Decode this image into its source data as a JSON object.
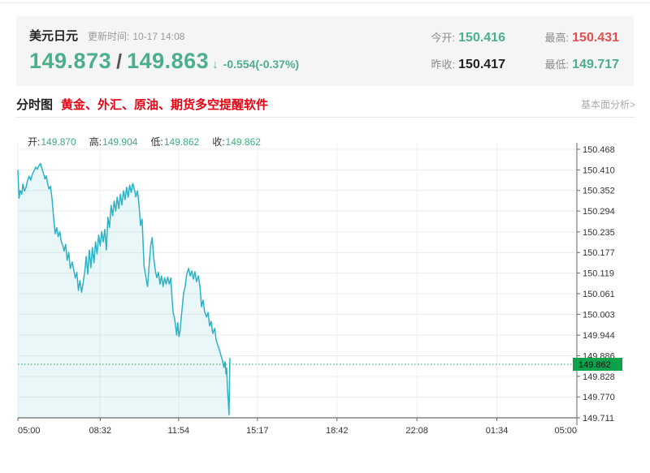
{
  "header": {
    "symbol": "美元日元",
    "update_label": "更新时间:",
    "update_time": "10-17 14:08",
    "bid": "149.873",
    "slash": "/",
    "ask": "149.863",
    "arrow": "↓",
    "change": "-0.554(-0.37%)",
    "stats": [
      {
        "label": "今开:",
        "value": "150.416",
        "color": "green"
      },
      {
        "label": "最高:",
        "value": "150.431",
        "color": "red"
      },
      {
        "label": "昨收:",
        "value": "150.417",
        "color": "dark"
      },
      {
        "label": "最低:",
        "value": "149.717",
        "color": "green"
      }
    ]
  },
  "tabs": {
    "active": "分时图",
    "ad_text": "黄金、外汇、原油、期货多空提醒软件",
    "right_link": "基本面分析>"
  },
  "ohlc": [
    {
      "label": "开:",
      "value": "149.870"
    },
    {
      "label": "高:",
      "value": "149.904"
    },
    {
      "label": "低:",
      "value": "149.862"
    },
    {
      "label": "收:",
      "value": "149.862"
    }
  ],
  "chart_data": {
    "type": "area",
    "title": "美元日元 分时图",
    "x_ticks": [
      "05:00",
      "08:32",
      "11:54",
      "15:17",
      "18:42",
      "22:08",
      "01:34",
      "05:00"
    ],
    "x_tick_minutes": [
      0,
      212,
      414,
      617,
      822,
      1028,
      1234,
      1440
    ],
    "x_total_minutes": 1440,
    "y_tick_labels": [
      "150.468",
      "150.410",
      "150.352",
      "150.294",
      "150.235",
      "150.177",
      "150.119",
      "150.061",
      "150.003",
      "149.944",
      "149.886",
      "149.828",
      "149.770",
      "149.711"
    ],
    "ylim": [
      149.711,
      150.468
    ],
    "grid": true,
    "current_price": 149.862,
    "current_price_label": "149.862",
    "line_color": "#2ab3c6",
    "fill_color": "rgba(42,179,198,0.10)",
    "dotted_color": "#2f9e57",
    "tag_bg": "#0ca24a",
    "tag_text_color": "#111",
    "series": [
      {
        "name": "USD/JPY",
        "points": [
          [
            0,
            150.41
          ],
          [
            3,
            150.33
          ],
          [
            6,
            150.352
          ],
          [
            10,
            150.342
          ],
          [
            13,
            150.37
          ],
          [
            17,
            150.35
          ],
          [
            21,
            150.36
          ],
          [
            25,
            150.38
          ],
          [
            29,
            150.392
          ],
          [
            33,
            150.381
          ],
          [
            38,
            150.4
          ],
          [
            42,
            150.408
          ],
          [
            46,
            150.418
          ],
          [
            50,
            150.412
          ],
          [
            54,
            150.421
          ],
          [
            58,
            150.428
          ],
          [
            62,
            150.414
          ],
          [
            66,
            150.4
          ],
          [
            70,
            150.384
          ],
          [
            73,
            150.393
          ],
          [
            77,
            150.37
          ],
          [
            80,
            150.356
          ],
          [
            84,
            150.364
          ],
          [
            88,
            150.33
          ],
          [
            92,
            150.276
          ],
          [
            96,
            150.23
          ],
          [
            100,
            150.247
          ],
          [
            104,
            150.222
          ],
          [
            108,
            150.236
          ],
          [
            112,
            150.207
          ],
          [
            116,
            150.196
          ],
          [
            119,
            150.181
          ],
          [
            123,
            150.2
          ],
          [
            127,
            150.155
          ],
          [
            131,
            150.177
          ],
          [
            135,
            150.132
          ],
          [
            140,
            150.15
          ],
          [
            144,
            150.128
          ],
          [
            148,
            150.105
          ],
          [
            152,
            150.121
          ],
          [
            156,
            150.07
          ],
          [
            160,
            150.098
          ],
          [
            164,
            150.065
          ],
          [
            168,
            150.091
          ],
          [
            172,
            150.121
          ],
          [
            176,
            150.166
          ],
          [
            180,
            150.116
          ],
          [
            184,
            150.184
          ],
          [
            188,
            150.134
          ],
          [
            192,
            150.191
          ],
          [
            196,
            150.148
          ],
          [
            200,
            150.207
          ],
          [
            204,
            150.173
          ],
          [
            208,
            150.226
          ],
          [
            212,
            150.196
          ],
          [
            216,
            150.236
          ],
          [
            220,
            150.207
          ],
          [
            224,
            150.242
          ],
          [
            228,
            150.184
          ],
          [
            232,
            150.276
          ],
          [
            236,
            150.248
          ],
          [
            240,
            150.31
          ],
          [
            244,
            150.281
          ],
          [
            248,
            150.322
          ],
          [
            252,
            150.294
          ],
          [
            256,
            150.333
          ],
          [
            260,
            150.301
          ],
          [
            264,
            150.341
          ],
          [
            268,
            150.311
          ],
          [
            272,
            150.351
          ],
          [
            276,
            150.326
          ],
          [
            280,
            150.361
          ],
          [
            284,
            150.333
          ],
          [
            288,
            150.367
          ],
          [
            292,
            150.346
          ],
          [
            296,
            150.372
          ],
          [
            300,
            150.356
          ],
          [
            304,
            150.334
          ],
          [
            308,
            150.351
          ],
          [
            312,
            150.311
          ],
          [
            316,
            150.253
          ],
          [
            320,
            150.271
          ],
          [
            325,
            150.139
          ],
          [
            330,
            150.106
          ],
          [
            334,
            150.081
          ],
          [
            338,
            150.139
          ],
          [
            342,
            150.196
          ],
          [
            346,
            150.219
          ],
          [
            350,
            150.162
          ],
          [
            354,
            150.127
          ],
          [
            358,
            150.106
          ],
          [
            362,
            150.121
          ],
          [
            366,
            150.088
          ],
          [
            370,
            150.111
          ],
          [
            374,
            150.081
          ],
          [
            378,
            150.106
          ],
          [
            382,
            150.088
          ],
          [
            386,
            150.108
          ],
          [
            390,
            150.088
          ],
          [
            394,
            150.105
          ],
          [
            397,
            150.05
          ],
          [
            400,
            150.008
          ],
          [
            404,
            149.99
          ],
          [
            407,
            149.963
          ],
          [
            409,
            149.944
          ],
          [
            412,
            149.979
          ],
          [
            415,
            149.94
          ],
          [
            418,
            149.957
          ],
          [
            421,
            149.995
          ],
          [
            423,
            150.018
          ],
          [
            427,
            150.063
          ],
          [
            431,
            150.081
          ],
          [
            435,
            150.116
          ],
          [
            440,
            150.132
          ],
          [
            444,
            150.111
          ],
          [
            448,
            150.125
          ],
          [
            452,
            150.102
          ],
          [
            456,
            150.123
          ],
          [
            460,
            150.095
          ],
          [
            465,
            150.111
          ],
          [
            469,
            150.081
          ],
          [
            473,
            150.024
          ],
          [
            477,
            150.043
          ],
          [
            481,
            150.011
          ],
          [
            486,
            149.995
          ],
          [
            490,
            150.008
          ],
          [
            494,
            149.97
          ],
          [
            498,
            149.983
          ],
          [
            502,
            149.949
          ],
          [
            507,
            149.963
          ],
          [
            511,
            149.93
          ],
          [
            515,
            149.915
          ],
          [
            519,
            149.903
          ],
          [
            523,
            149.887
          ],
          [
            527,
            149.873
          ],
          [
            531,
            149.853
          ],
          [
            534,
            149.869
          ],
          [
            536,
            149.835
          ],
          [
            538,
            149.851
          ],
          [
            540,
            149.791
          ],
          [
            542,
            149.757
          ],
          [
            544,
            149.72
          ],
          [
            546,
            149.88
          ]
        ]
      }
    ]
  }
}
